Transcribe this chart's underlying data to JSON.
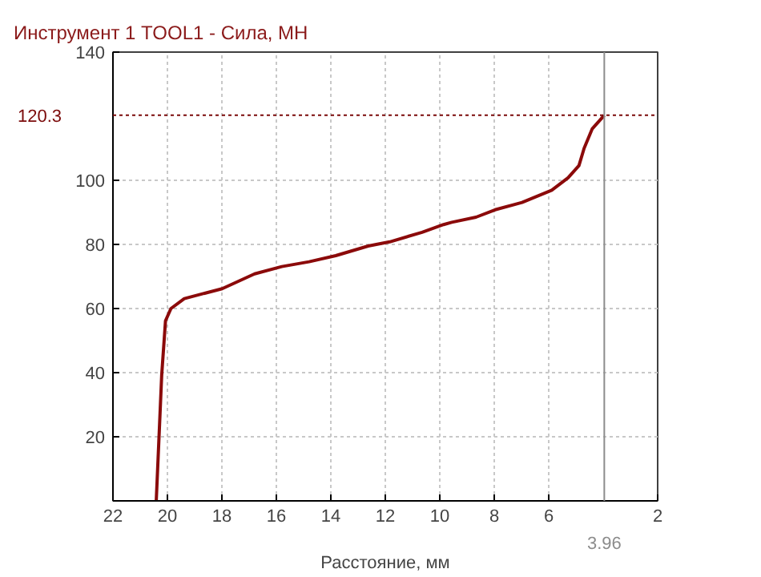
{
  "chart_data": {
    "type": "line",
    "title": "Инструмент 1 TOOL1 - Сила, МН",
    "xlabel": "Расстояние, мм",
    "x": [
      20.41,
      20.21,
      20.07,
      19.87,
      19.38,
      17.99,
      16.8,
      15.8,
      14.8,
      13.82,
      12.63,
      11.84,
      10.65,
      9.86,
      9.56,
      8.67,
      7.97,
      6.98,
      5.89,
      5.29,
      4.89,
      4.7,
      4.4,
      3.96
    ],
    "series": [
      {
        "color": "#8b0a0a",
        "values": [
          0,
          39.2,
          56.2,
          60,
          63.1,
          66.2,
          70.8,
          73.1,
          74.6,
          76.5,
          79.5,
          80.8,
          83.8,
          86.2,
          86.9,
          88.5,
          90.8,
          93.1,
          96.9,
          100.8,
          104.6,
          110,
          116.1,
          120.3
        ]
      }
    ],
    "xlim": [
      22,
      2
    ],
    "ylim": [
      0,
      140
    ],
    "xticks": [
      22,
      20,
      18,
      16,
      14,
      12,
      10,
      8,
      6,
      2
    ],
    "yticks": [
      20,
      40,
      60,
      80,
      100,
      140
    ],
    "ref_lines": [
      {
        "axis": "x",
        "value": 3.96,
        "label": "3.96",
        "color": "#8c8c8c"
      },
      {
        "axis": "y",
        "value": 120.3,
        "label": "120.3",
        "color": "#7b0a0a"
      }
    ],
    "grid": true,
    "marker": "none",
    "line_style": "solid"
  }
}
